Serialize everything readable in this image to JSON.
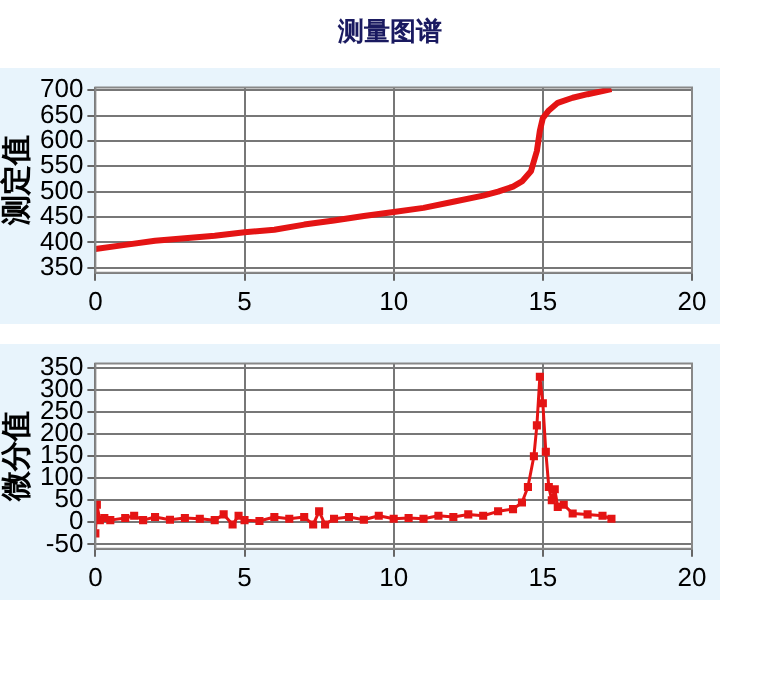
{
  "chart_data": [
    {
      "type": "line",
      "title": "测量图谱",
      "ylabel": "测定值",
      "xlim": [
        0,
        20
      ],
      "xticks": [
        0,
        5,
        10,
        15,
        20
      ],
      "ylim": [
        340,
        705
      ],
      "yticks": [
        350,
        400,
        450,
        500,
        550,
        600,
        650,
        700
      ],
      "grid": true,
      "legend": false,
      "marker": "none",
      "line_style": "solid",
      "series": [
        {
          "color": "#e41414",
          "x": [
            0,
            1,
            2,
            3,
            4,
            5,
            6,
            7,
            8,
            9,
            10,
            11,
            12,
            13,
            13.5,
            14,
            14.3,
            14.6,
            14.8,
            14.9,
            15.0,
            15.2,
            15.5,
            16,
            16.5,
            17,
            17.3
          ],
          "values": [
            387,
            395,
            403,
            408,
            413,
            420,
            425,
            435,
            443,
            452,
            460,
            468,
            480,
            492,
            500,
            510,
            520,
            540,
            580,
            620,
            645,
            660,
            675,
            685,
            692,
            698,
            702
          ]
        }
      ]
    },
    {
      "type": "line",
      "ylabel": "微分值",
      "xlim": [
        0,
        20
      ],
      "xticks": [
        0,
        5,
        10,
        15,
        20
      ],
      "ylim": [
        -60,
        360
      ],
      "yticks": [
        -50,
        0,
        50,
        100,
        150,
        200,
        250,
        300,
        350
      ],
      "grid": true,
      "legend": false,
      "marker": "square",
      "line_style": "solid",
      "series": [
        {
          "color": "#e41414",
          "x": [
            0,
            0.05,
            0.15,
            0.3,
            0.5,
            1,
            1.3,
            1.6,
            2,
            2.5,
            3,
            3.5,
            4,
            4.3,
            4.6,
            4.8,
            5,
            5.5,
            6,
            6.5,
            7,
            7.3,
            7.5,
            7.7,
            8,
            8.5,
            9,
            9.5,
            10,
            10.5,
            11,
            11.5,
            12,
            12.5,
            13,
            13.5,
            14,
            14.3,
            14.5,
            14.7,
            14.8,
            14.9,
            15.0,
            15.1,
            15.2,
            15.3,
            15.4,
            15.5,
            15.7,
            16,
            16.5,
            17,
            17.3
          ],
          "values": [
            -25,
            40,
            5,
            10,
            5,
            10,
            15,
            5,
            12,
            6,
            10,
            8,
            5,
            18,
            -5,
            15,
            5,
            3,
            12,
            8,
            12,
            -5,
            25,
            -5,
            8,
            12,
            6,
            15,
            8,
            10,
            8,
            15,
            12,
            18,
            15,
            25,
            30,
            45,
            80,
            150,
            220,
            330,
            270,
            160,
            80,
            50,
            75,
            35,
            40,
            20,
            18,
            15,
            8
          ]
        }
      ]
    }
  ]
}
